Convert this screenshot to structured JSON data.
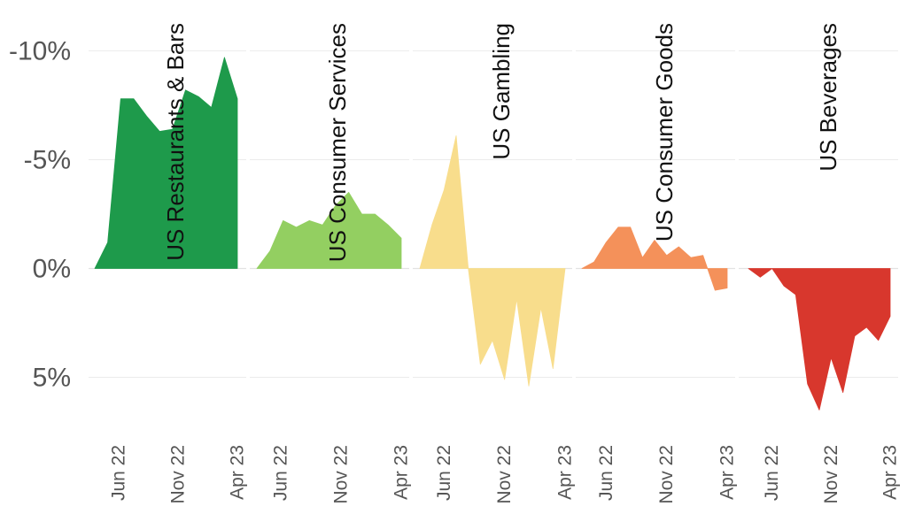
{
  "chart_data": {
    "type": "area",
    "subtype": "small-multiples",
    "y_axis": {
      "ticks": [
        -10,
        -5,
        0,
        5
      ],
      "tick_labels": [
        "-10%",
        "-5%",
        "0%",
        "5%"
      ],
      "range": [
        -10.5,
        6.5
      ],
      "inverted": true,
      "unit": "%"
    },
    "x_tick_labels": [
      "Jun 22",
      "Nov 22",
      "Apr 23"
    ],
    "x_tick_positions": [
      2,
      7,
      12
    ],
    "grid": true,
    "panels": [
      {
        "name": "US Restaurants & Bars",
        "color": "#1e9a4b",
        "values": [
          0,
          -1.2,
          -7.8,
          -7.8,
          -7.0,
          -6.3,
          -6.4,
          -8.2,
          -7.9,
          -7.4,
          -9.7,
          -7.8
        ]
      },
      {
        "name": "US Consumer Services",
        "color": "#93cf61",
        "values": [
          0,
          -0.8,
          -2.2,
          -1.9,
          -2.2,
          -2.0,
          -2.9,
          -3.5,
          -2.5,
          -2.5,
          -2.0,
          -1.4
        ]
      },
      {
        "name": "US Gambling",
        "color": "#f8dd8c",
        "values": [
          0,
          -2.0,
          -3.6,
          -6.1,
          0,
          4.4,
          3.3,
          5.1,
          1.4,
          5.4,
          1.8,
          4.6,
          0
        ]
      },
      {
        "name": "US Consumer Goods",
        "color": "#f4915a",
        "values": [
          0,
          -0.3,
          -1.2,
          -1.9,
          -1.9,
          -0.5,
          -1.3,
          -0.6,
          -1.0,
          -0.5,
          -0.6,
          1.0,
          0.9
        ]
      },
      {
        "name": "US Beverages",
        "color": "#d8372d",
        "values": [
          0,
          0.4,
          0,
          0.8,
          1.2,
          5.3,
          6.5,
          4.1,
          5.7,
          3.1,
          2.7,
          3.3,
          2.2
        ]
      }
    ]
  }
}
